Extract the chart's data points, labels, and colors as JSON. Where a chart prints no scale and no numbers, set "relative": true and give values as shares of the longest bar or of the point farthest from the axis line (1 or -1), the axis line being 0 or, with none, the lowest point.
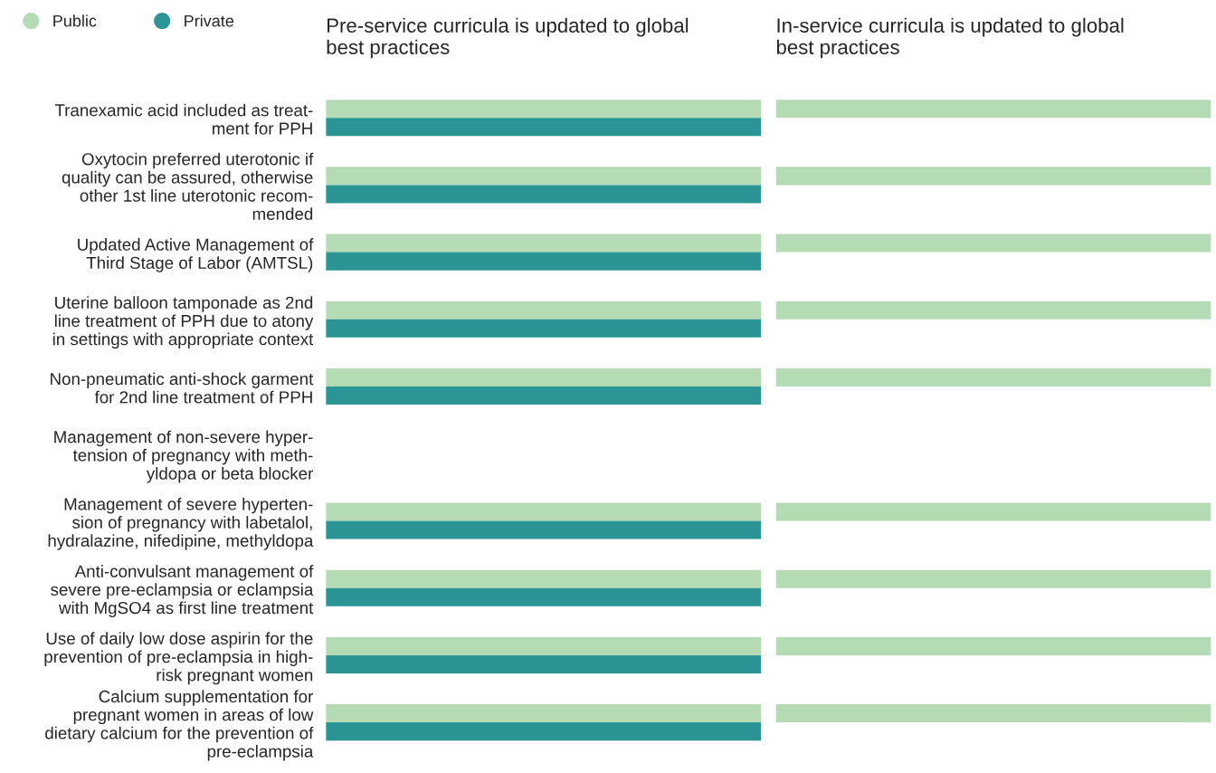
{
  "chart_data": [
    {
      "type": "bar",
      "orientation": "horizontal",
      "relative": true,
      "title": "Pre-service curricula is updated to global\nbest practices",
      "legend": "top left",
      "tick_labels": "y",
      "categories": [
        "Tranexamic acid included as treat-\nment for PPH",
        "Oxytocin preferred uterotonic if\nquality can be assured, otherwise\nother 1st line uterotonic recom-\nmended",
        "Updated Active Management of\nThird Stage of Labor (AMTSL)",
        "Uterine balloon tamponade as 2nd\nline treatment of PPH due to atony\nin settings with appropriate context",
        "Non-pneumatic anti-shock garment\nfor 2nd line treatment of PPH",
        "Management of non-severe hyper-\ntension of pregnancy with meth-\nyldopa or beta blocker",
        "Management of severe hyperten-\nsion of pregnancy with labetalol,\nhydralazine, nifedipine, methyldopa",
        "Anti-convulsant management of\nsevere pre-eclampsia or eclampsia\nwith MgSO4 as first line treatment",
        "Use of daily low dose aspirin for the\nprevention of pre-eclampsia in high-\nrisk pregnant women",
        "Calcium supplementation for\npregnant women in areas of low\ndietary calcium for the prevention of\npre-eclampsia"
      ],
      "series": [
        {
          "name": "Public",
          "color": "#b5dbb4",
          "values": [
            1,
            1,
            1,
            1,
            1,
            null,
            1,
            1,
            1,
            1
          ]
        },
        {
          "name": "Private",
          "color": "#2b9595",
          "values": [
            1,
            1,
            1,
            1,
            1,
            null,
            1,
            1,
            1,
            1
          ]
        }
      ]
    },
    {
      "type": "bar",
      "orientation": "horizontal",
      "relative": true,
      "title": "In-service curricula is updated to global\nbest practices",
      "tick_labels": false,
      "categories": [
        null,
        null,
        null,
        null,
        null,
        null,
        null,
        null,
        null,
        null
      ],
      "series": [
        {
          "color": "#b5dbb4",
          "values": [
            1,
            1,
            1,
            1,
            1,
            null,
            1,
            1,
            1,
            1
          ]
        },
        {
          "color": "#2b9595",
          "values": [
            null,
            null,
            null,
            null,
            null,
            null,
            null,
            null,
            null,
            null
          ]
        }
      ]
    }
  ]
}
